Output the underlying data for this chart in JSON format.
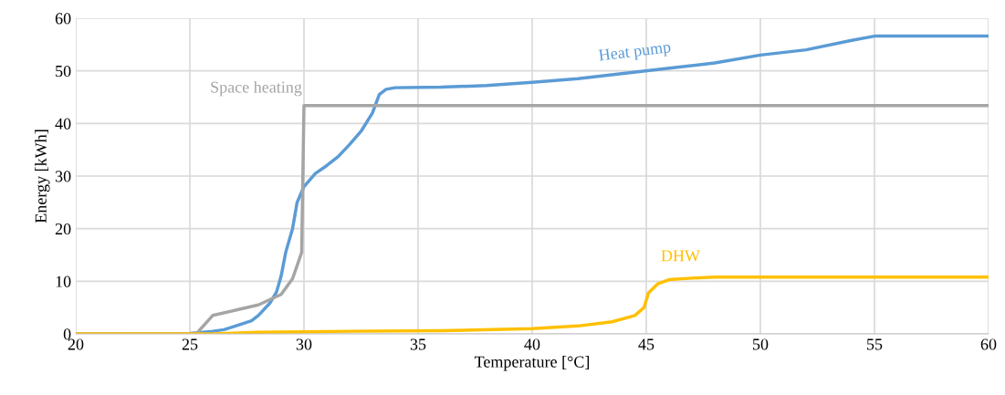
{
  "chart_data": {
    "type": "line",
    "xlabel": "Temperature [°C]",
    "ylabel": "Energy [kWh]",
    "xlim": [
      20,
      60
    ],
    "xticks": [
      20,
      25,
      30,
      35,
      40,
      45,
      50,
      55,
      60
    ],
    "ylim": [
      0,
      60
    ],
    "yticks": [
      0,
      10,
      20,
      30,
      40,
      50,
      60
    ],
    "grid": true,
    "legend": false,
    "marker": "none",
    "line_style": "solid",
    "series": [
      {
        "name": "Heat pump",
        "color": "#5b9bd5",
        "x": [
          20,
          25,
          26,
          26.5,
          27,
          27.7,
          28,
          28.5,
          28.8,
          29,
          29.2,
          29.5,
          29.7,
          30,
          30.5,
          31,
          31.5,
          32,
          32.5,
          33,
          33.3,
          33.6,
          34,
          36,
          38,
          40,
          42,
          44,
          46,
          48,
          50,
          52,
          54,
          55,
          60
        ],
        "values": [
          0,
          0.1,
          0.5,
          0.8,
          1.5,
          2.5,
          3.5,
          5.8,
          8,
          11,
          15.5,
          20,
          25,
          28,
          30.5,
          32,
          33.7,
          36,
          38.5,
          42,
          45.5,
          46.5,
          46.8,
          46.9,
          47.2,
          47.8,
          48.5,
          49.5,
          50.5,
          51.5,
          53,
          54,
          55.8,
          56.6,
          56.6
        ]
      },
      {
        "name": "Space heating",
        "color": "#a5a5a5",
        "x": [
          20,
          25.3,
          26,
          27,
          28,
          29,
          29.5,
          29.9,
          30,
          60
        ],
        "values": [
          0,
          0.1,
          3.5,
          4.5,
          5.5,
          7.5,
          10.5,
          15.5,
          43.4,
          43.4
        ]
      },
      {
        "name": "DHW",
        "color": "#ffc000",
        "x": [
          20,
          26,
          28,
          30,
          32,
          36,
          40,
          42,
          43.5,
          44.5,
          44.9,
          45.1,
          45.5,
          46,
          47,
          48,
          60
        ],
        "values": [
          0,
          0,
          0.3,
          0.4,
          0.5,
          0.6,
          1,
          1.5,
          2.3,
          3.5,
          5,
          7.8,
          9.5,
          10.3,
          10.6,
          10.8,
          10.8
        ]
      }
    ]
  }
}
